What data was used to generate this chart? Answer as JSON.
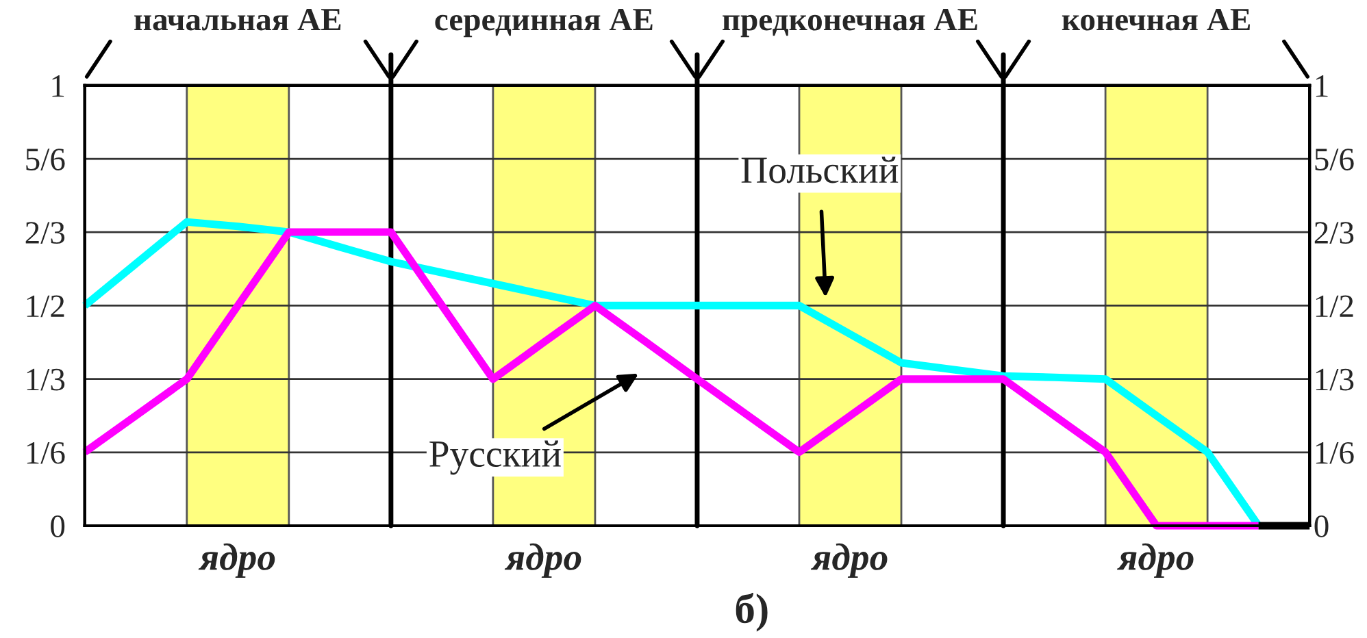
{
  "chart_data": {
    "type": "line",
    "annotations": [
      "начальная АЕ",
      "серединная АЕ",
      "предконечная АЕ",
      "конечная АЕ",
      "Польский",
      "Русский",
      "ядро",
      "ядро",
      "ядро",
      "ядро",
      "б)"
    ],
    "categories": [
      null,
      null,
      null,
      null,
      null,
      null,
      null,
      null,
      null,
      null,
      null,
      null,
      null,
      null,
      null,
      null,
      null,
      null,
      null,
      null,
      null,
      null,
      null,
      null,
      null
    ],
    "series": [
      {
        "color": "#00ffff",
        "values": [
          0.5,
          0.595,
          0.69,
          0.68,
          0.667,
          0.633,
          0.6,
          0.575,
          0.55,
          0.525,
          0.5,
          0.5,
          0.5,
          0.5,
          0.5,
          0.435,
          0.37,
          0.355,
          0.34,
          0.337,
          0.333,
          0.25,
          0.167,
          0,
          null
        ]
      },
      {
        "color": "#ff00ff",
        "values": [
          0.167,
          0.25,
          0.333,
          0.5,
          0.667,
          0.667,
          0.667,
          0.5,
          0.333,
          0.417,
          0.5,
          0.417,
          0.333,
          0.25,
          0.167,
          0.25,
          0.333,
          0.333,
          0.333,
          0.25,
          0.167,
          0,
          0,
          0,
          null
        ]
      },
      {
        "color": "#000000",
        "values": [
          null,
          null,
          null,
          null,
          null,
          null,
          null,
          null,
          null,
          null,
          null,
          null,
          null,
          null,
          null,
          null,
          null,
          null,
          null,
          null,
          null,
          null,
          null,
          0,
          0
        ]
      }
    ],
    "ylim": [
      0,
      1
    ],
    "yticks": [
      {
        "value": 0,
        "label": "0"
      },
      {
        "value": 0.1667,
        "label": "1/6"
      },
      {
        "value": 0.3333,
        "label": "1/3"
      },
      {
        "value": 0.5,
        "label": "1/2"
      },
      {
        "value": 0.6667,
        "label": "2/3"
      },
      {
        "value": 0.8333,
        "label": "5/6"
      },
      {
        "value": 1,
        "label": "1"
      }
    ],
    "y2lim": [
      0,
      1
    ],
    "y2ticks": [
      {
        "value": 0,
        "label": "0"
      },
      {
        "value": 0.1667,
        "label": "1/6"
      },
      {
        "value": 0.3333,
        "label": "1/3"
      },
      {
        "value": 0.5,
        "label": "1/2"
      },
      {
        "value": 0.6667,
        "label": "2/3"
      },
      {
        "value": 0.8333,
        "label": "5/6"
      },
      {
        "value": 1,
        "label": "1"
      }
    ],
    "grid": true
  }
}
